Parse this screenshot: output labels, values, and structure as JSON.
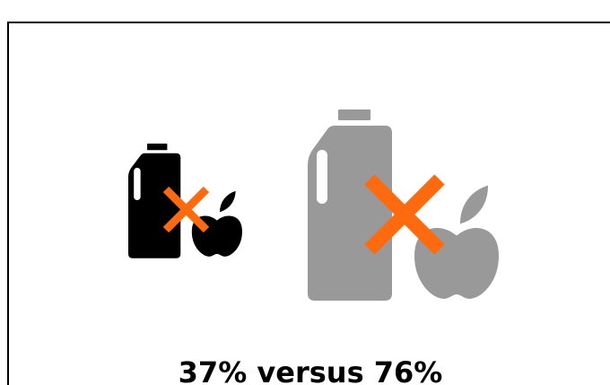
{
  "caption": "37% versus 76%"
}
